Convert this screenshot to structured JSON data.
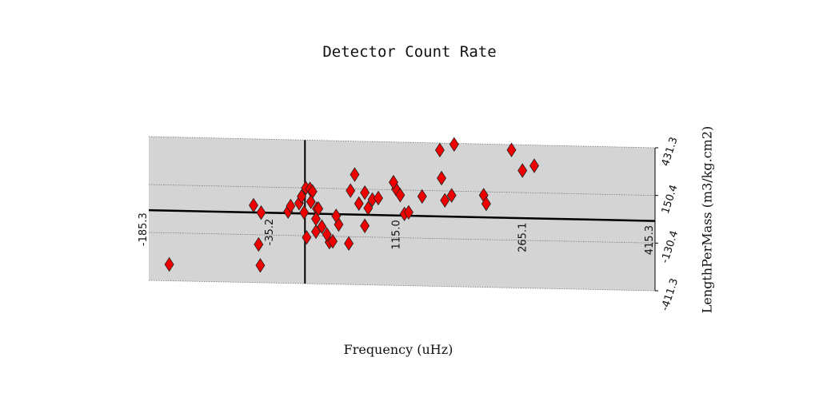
{
  "chart_data": {
    "type": "scatter",
    "title": "Detector Count Rate",
    "xlabel": "Frequency (uHz)",
    "ylabel": "LengthPerMass (m3/kg.cm2)",
    "xlim": [
      -185.3,
      415.3
    ],
    "ylim": [
      -411.3,
      431.3
    ],
    "x_ticks": [
      "-185.3",
      "-35.2",
      "115.0",
      "265.1",
      "415.3"
    ],
    "y_ticks": [
      "-411.3",
      "-130.4",
      "150.4",
      "431.3"
    ],
    "grid": true,
    "marker": "diamond",
    "color": "#ee0000",
    "x": [
      -161,
      -61,
      -55,
      -52,
      -53,
      -1,
      -20,
      -17,
      2,
      14,
      13,
      29,
      40,
      54,
      59,
      71,
      71,
      80,
      87,
      108,
      118,
      123,
      139,
      160,
      162,
      166,
      174,
      177,
      1,
      -7,
      -4,
      6,
      9,
      7,
      13,
      16,
      20,
      26,
      33,
      37,
      52,
      64,
      75,
      105,
      113,
      212,
      215,
      245,
      258,
      272
    ],
    "y": [
      -315,
      42,
      -187,
      0,
      -310,
      6,
      10,
      42,
      -140,
      30,
      -105,
      -165,
      -60,
      140,
      235,
      -65,
      130,
      90,
      100,
      155,
      10,
      20,
      115,
      390,
      225,
      95,
      125,
      425,
      150,
      60,
      100,
      145,
      130,
      70,
      -30,
      30,
      -75,
      -120,
      -160,
      -10,
      -170,
      65,
      40,
      195,
      120,
      130,
      80,
      400,
      280,
      310
    ]
  }
}
